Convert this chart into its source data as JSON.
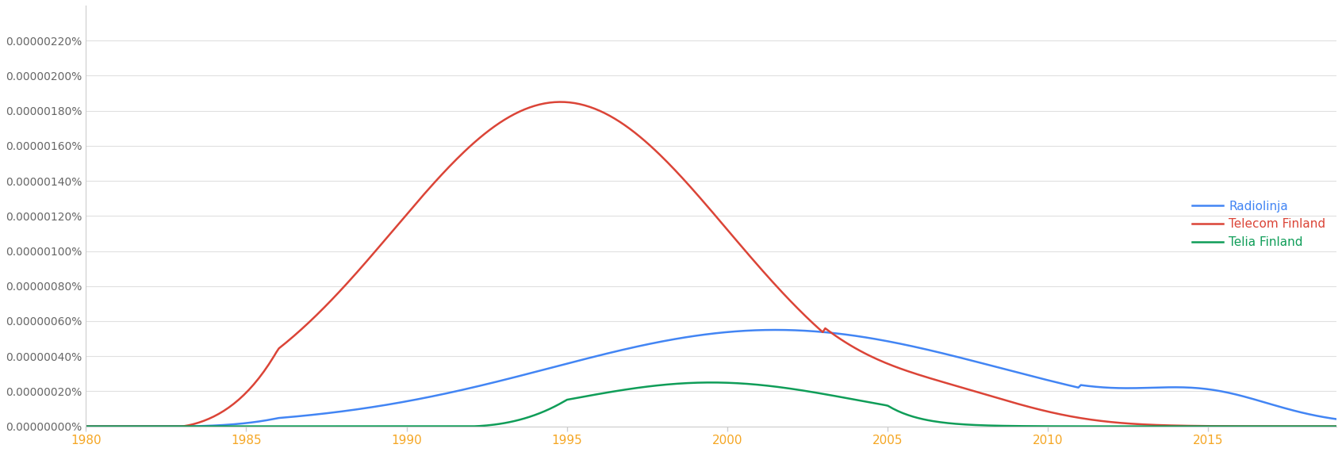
{
  "title": "",
  "xlabel": "",
  "ylabel": "",
  "xmin": 1980,
  "xmax": 2019,
  "ymin": 0.0,
  "ymax": 2.4e-09,
  "xticks": [
    1980,
    1985,
    1990,
    1995,
    2000,
    2005,
    2010,
    2015
  ],
  "legend": [
    "Radiolinja",
    "Telecom Finland",
    "Telia Finland"
  ],
  "colors": [
    "#4285f4",
    "#db4437",
    "#0f9d58"
  ],
  "background_color": "#ffffff",
  "grid_color": "#e0e0e0",
  "font_size": 11
}
